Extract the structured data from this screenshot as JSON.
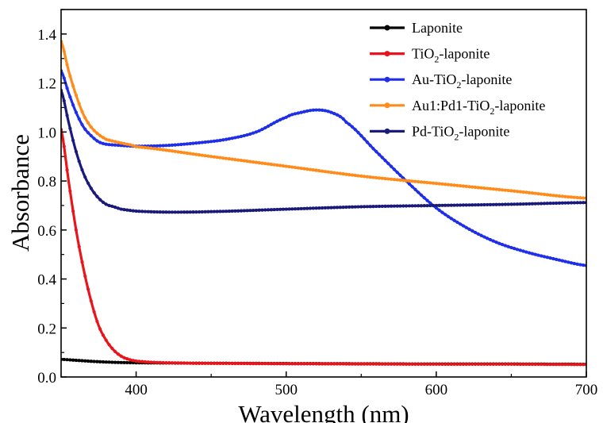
{
  "chart_data": {
    "type": "line",
    "xlabel": "Wavelength (nm)",
    "ylabel": "Absorbance",
    "xlim": [
      350,
      700
    ],
    "ylim": [
      0.0,
      1.5
    ],
    "xticks": [
      400,
      500,
      600,
      700
    ],
    "xtick_labels": [
      "400",
      "500",
      "600",
      "700"
    ],
    "yticks": [
      0.0,
      0.2,
      0.4,
      0.6,
      0.8,
      1.0,
      1.2,
      1.4
    ],
    "ytick_labels": [
      "0.0",
      "0.2",
      "0.4",
      "0.6",
      "0.8",
      "1.0",
      "1.2",
      "1.4"
    ],
    "grid": false,
    "legend_position": "top-right",
    "series": [
      {
        "name": "Laponite",
        "legend_parts": [
          "Laponite"
        ],
        "color": "#000000",
        "x": [
          350,
          360,
          370,
          380,
          390,
          400,
          420,
          450,
          500,
          550,
          600,
          650,
          700
        ],
        "y": [
          0.072,
          0.068,
          0.064,
          0.061,
          0.059,
          0.058,
          0.057,
          0.056,
          0.055,
          0.054,
          0.053,
          0.053,
          0.052
        ]
      },
      {
        "name": "TiO2-laponite",
        "legend_parts": [
          "TiO",
          "2",
          "-laponite"
        ],
        "color": "#e8151b",
        "x": [
          350,
          355,
          360,
          365,
          370,
          375,
          380,
          385,
          390,
          395,
          400,
          410,
          420,
          440,
          470,
          500,
          550,
          600,
          650,
          700
        ],
        "y": [
          1.01,
          0.8,
          0.6,
          0.44,
          0.31,
          0.21,
          0.15,
          0.11,
          0.085,
          0.072,
          0.065,
          0.06,
          0.058,
          0.056,
          0.055,
          0.054,
          0.053,
          0.052,
          0.052,
          0.051
        ]
      },
      {
        "name": "Au-TiO2-laponite",
        "legend_parts": [
          "Au-TiO",
          "2",
          "-laponite"
        ],
        "color": "#1f2ee8",
        "x": [
          350,
          355,
          360,
          365,
          370,
          375,
          380,
          390,
          400,
          420,
          440,
          460,
          480,
          500,
          510,
          520,
          530,
          540,
          560,
          580,
          600,
          620,
          640,
          660,
          680,
          700
        ],
        "y": [
          1.25,
          1.16,
          1.08,
          1.02,
          0.985,
          0.96,
          0.95,
          0.945,
          0.942,
          0.945,
          0.955,
          0.97,
          1.0,
          1.06,
          1.08,
          1.09,
          1.08,
          1.04,
          0.92,
          0.8,
          0.69,
          0.61,
          0.55,
          0.51,
          0.48,
          0.455
        ]
      },
      {
        "name": "Au1:Pd1-TiO2-laponite",
        "legend_parts": [
          "Au1:Pd1-TiO",
          "2",
          "-laponite"
        ],
        "color": "#ff8c1a",
        "x": [
          350,
          355,
          360,
          365,
          370,
          375,
          380,
          390,
          400,
          450,
          500,
          550,
          600,
          650,
          700
        ],
        "y": [
          1.37,
          1.25,
          1.15,
          1.07,
          1.02,
          0.99,
          0.97,
          0.955,
          0.94,
          0.9,
          0.86,
          0.82,
          0.79,
          0.76,
          0.73
        ]
      },
      {
        "name": "Pd-TiO2-laponite",
        "legend_parts": [
          "Pd-TiO",
          "2",
          "-laponite"
        ],
        "color": "#1a1a7a",
        "x": [
          350,
          355,
          360,
          365,
          370,
          375,
          380,
          385,
          390,
          400,
          420,
          450,
          500,
          550,
          600,
          650,
          700
        ],
        "y": [
          1.17,
          1.04,
          0.92,
          0.83,
          0.77,
          0.73,
          0.705,
          0.695,
          0.685,
          0.677,
          0.673,
          0.675,
          0.685,
          0.695,
          0.7,
          0.705,
          0.712
        ]
      }
    ]
  }
}
